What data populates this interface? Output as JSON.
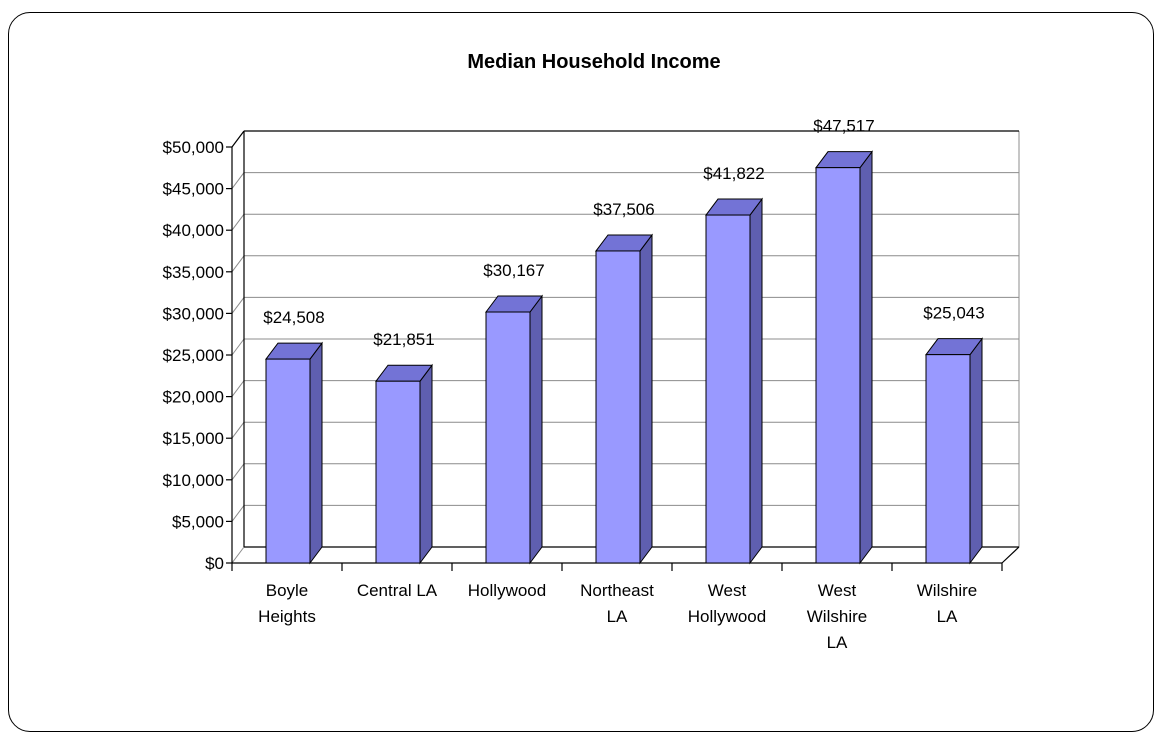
{
  "chart_data": {
    "type": "bar",
    "title": "Median Household Income",
    "xlabel": "",
    "ylabel": "",
    "ylim": [
      0,
      50000
    ],
    "ytick_step": 5000,
    "yticks": [
      "$0",
      "$5,000",
      "$10,000",
      "$15,000",
      "$20,000",
      "$25,000",
      "$30,000",
      "$35,000",
      "$40,000",
      "$45,000",
      "$50,000"
    ],
    "categories": [
      [
        "Boyle",
        "Heights"
      ],
      [
        "Central LA"
      ],
      [
        "Hollywood"
      ],
      [
        "Northeast",
        "LA"
      ],
      [
        "West",
        "Hollywood"
      ],
      [
        "West",
        "Wilshire",
        "LA"
      ],
      [
        "Wilshire",
        "LA"
      ]
    ],
    "values": [
      24508,
      21851,
      30167,
      37506,
      41822,
      47517,
      25043
    ],
    "value_labels": [
      "$24,508",
      "$21,851",
      "$30,167",
      "$37,506",
      "$41,822",
      "$47,517",
      "$25,043"
    ],
    "grid": true,
    "legend": "none",
    "style": "3d-column",
    "colors": {
      "bar_front": "#9999ff",
      "bar_top": "#7373d6",
      "bar_side": "#5f5fb0",
      "grid": "#8c8c8c",
      "axis": "#000000"
    }
  }
}
